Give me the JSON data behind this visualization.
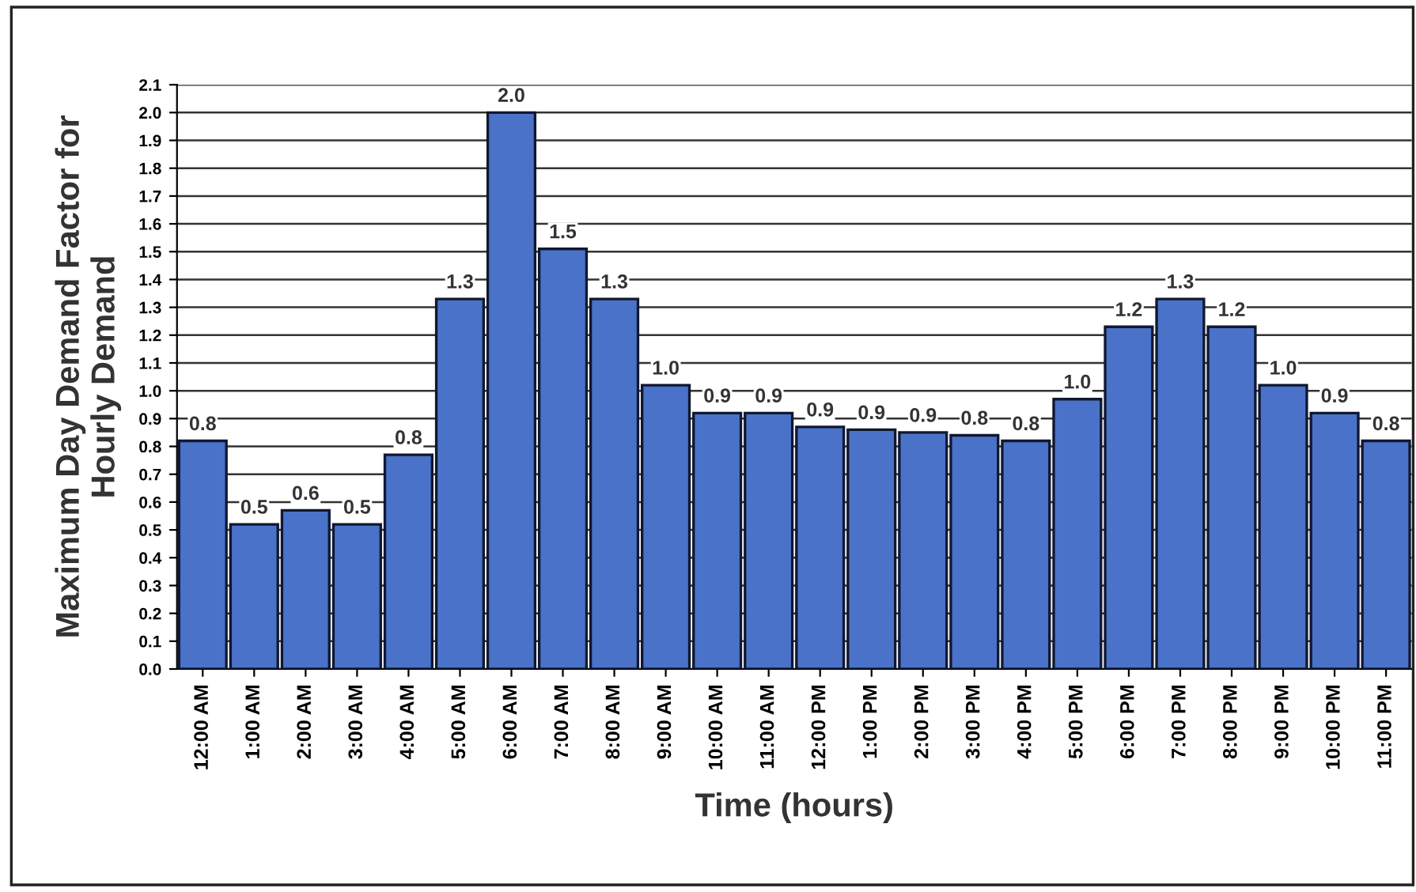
{
  "chart_data": {
    "type": "bar",
    "xlabel": "Time (hours)",
    "ylabel": "Maximum Day Demand Factor for\nHourly Demand",
    "categories": [
      "12:00 AM",
      "1:00 AM",
      "2:00 AM",
      "3:00 AM",
      "4:00 AM",
      "5:00 AM",
      "6:00 AM",
      "7:00 AM",
      "8:00 AM",
      "9:00 AM",
      "10:00 AM",
      "11:00 AM",
      "12:00 PM",
      "1:00 PM",
      "2:00 PM",
      "3:00 PM",
      "4:00 PM",
      "5:00 PM",
      "6:00 PM",
      "7:00 PM",
      "8:00 PM",
      "9:00 PM",
      "10:00 PM",
      "11:00 PM"
    ],
    "values": [
      0.82,
      0.52,
      0.57,
      0.52,
      0.77,
      1.33,
      2.0,
      1.51,
      1.33,
      1.02,
      0.92,
      0.92,
      0.87,
      0.86,
      0.85,
      0.84,
      0.82,
      0.97,
      1.23,
      1.33,
      1.23,
      1.02,
      0.92,
      0.82
    ],
    "value_labels": [
      "0.8",
      "0.5",
      "0.6",
      "0.5",
      "0.8",
      "1.3",
      "2.0",
      "1.5",
      "1.3",
      "1.0",
      "0.9",
      "0.9",
      "0.9",
      "0.9",
      "0.9",
      "0.8",
      "0.8",
      "1.0",
      "1.2",
      "1.3",
      "1.2",
      "1.0",
      "0.9",
      "0.8"
    ],
    "color": "#4a72c8",
    "ylim": [
      0.0,
      2.1
    ],
    "yticks": [
      {
        "value": 0,
        "label": "0.0"
      },
      0.1,
      0.2,
      0.3,
      0.4,
      0.5,
      0.6,
      0.7,
      0.8,
      0.9,
      {
        "value": 1,
        "label": "1.0"
      },
      1.1,
      1.2,
      1.3,
      1.4,
      1.5,
      1.6,
      1.7,
      1.8,
      1.9,
      {
        "value": 2,
        "label": "2.0"
      },
      2.1
    ],
    "grid": "y",
    "legend": false
  }
}
